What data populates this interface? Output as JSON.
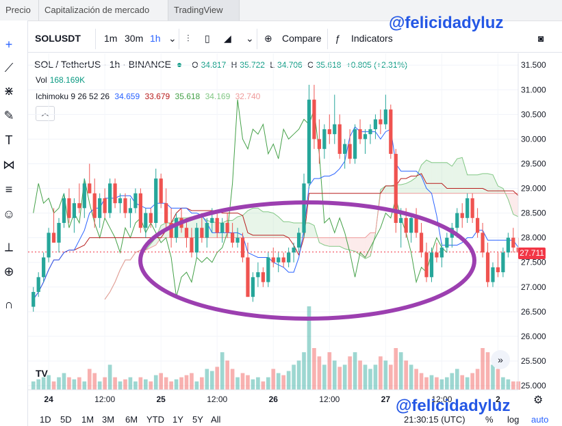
{
  "tabs": [
    {
      "label": "Precio"
    },
    {
      "label": "Capitalización de mercado"
    },
    {
      "label": "TradingView"
    }
  ],
  "watermark": "@felicidadyluz",
  "toolbar": {
    "symbol": "SOLUSDT",
    "intervals": [
      "1m",
      "30m",
      "1h"
    ],
    "compare_label": "Compare",
    "indicators_label": "Indicators"
  },
  "legend": {
    "title": "SOL / TetherUS · 1h · BINANCE",
    "o_label": "O",
    "o": "34.817",
    "h_label": "H",
    "h": "35.722",
    "l_label": "L",
    "l": "34.706",
    "c_label": "C",
    "c": "35.618",
    "change": "+0.805 (+2.31%)",
    "vol_label": "Vol",
    "vol": "168.169K",
    "ichimoku_label": "Ichimoku 9 26 52 26",
    "ichi_values": [
      "34.659",
      "33.679",
      "35.618",
      "34.169",
      "32.740"
    ]
  },
  "colors": {
    "up": "#26a69a",
    "down": "#ef5350",
    "conversion": "#2962ff",
    "base": "#b71c1c",
    "lagging": "#43a047",
    "span_a": "#81c784",
    "span_b": "#ef9a9a",
    "ellipse": "#9c3fb0"
  },
  "price_axis": [
    "31.500",
    "31.000",
    "30.500",
    "30.000",
    "29.500",
    "29.000",
    "28.500",
    "28.000",
    "27.500",
    "27.000",
    "26.500",
    "26.000",
    "25.500",
    "25.000"
  ],
  "current_price": "27.711",
  "time_axis": [
    "24",
    "12:00",
    "25",
    "12:00",
    "26",
    "12:00",
    "27",
    "12:00",
    "2"
  ],
  "bottom": {
    "ranges": [
      "1D",
      "5D",
      "1M",
      "3M",
      "6M",
      "YTD",
      "1Y",
      "5Y",
      "All"
    ],
    "clock": "21:30:15 (UTC)",
    "pct": "%",
    "log": "log",
    "auto": "auto"
  },
  "chart_data": {
    "type": "candlestick",
    "y_range": [
      25.0,
      31.6
    ],
    "candles": [
      [
        26.6,
        27.0,
        26.5,
        26.9
      ],
      [
        26.9,
        27.3,
        26.8,
        27.2
      ],
      [
        27.2,
        27.7,
        27.1,
        27.6
      ],
      [
        27.6,
        28.2,
        27.5,
        28.1
      ],
      [
        28.1,
        28.6,
        27.9,
        27.9
      ],
      [
        27.9,
        28.4,
        27.7,
        28.3
      ],
      [
        28.3,
        28.9,
        28.2,
        28.8
      ],
      [
        28.8,
        29.0,
        28.3,
        28.4
      ],
      [
        28.4,
        28.8,
        28.1,
        28.7
      ],
      [
        28.7,
        29.1,
        28.5,
        28.6
      ],
      [
        28.6,
        29.2,
        28.4,
        29.1
      ],
      [
        29.1,
        29.5,
        28.9,
        28.9
      ],
      [
        28.9,
        29.2,
        28.2,
        28.4
      ],
      [
        28.4,
        28.9,
        28.2,
        28.8
      ],
      [
        28.8,
        29.0,
        28.4,
        28.5
      ],
      [
        28.5,
        29.2,
        28.4,
        29.1
      ],
      [
        29.1,
        29.2,
        28.6,
        28.7
      ],
      [
        28.7,
        28.9,
        28.5,
        28.8
      ],
      [
        28.8,
        28.9,
        28.4,
        28.5
      ],
      [
        28.5,
        28.8,
        28.2,
        28.6
      ],
      [
        28.6,
        29.0,
        28.5,
        28.9
      ],
      [
        28.9,
        29.0,
        28.1,
        28.2
      ],
      [
        28.2,
        28.6,
        28.0,
        28.5
      ],
      [
        28.5,
        28.6,
        28.2,
        28.3
      ],
      [
        28.3,
        29.4,
        28.2,
        29.2
      ],
      [
        29.2,
        29.3,
        28.6,
        28.7
      ],
      [
        28.7,
        29.0,
        28.2,
        28.3
      ],
      [
        28.3,
        28.6,
        27.8,
        28.0
      ],
      [
        28.0,
        28.5,
        27.9,
        28.4
      ],
      [
        28.4,
        28.6,
        28.1,
        28.2
      ],
      [
        28.2,
        28.4,
        27.8,
        28.0
      ],
      [
        28.0,
        28.2,
        27.6,
        27.7
      ],
      [
        27.7,
        28.3,
        27.6,
        28.2
      ],
      [
        28.2,
        28.5,
        27.9,
        28.0
      ],
      [
        28.0,
        28.4,
        27.8,
        28.3
      ],
      [
        28.3,
        28.6,
        28.1,
        28.4
      ],
      [
        28.4,
        28.5,
        28.0,
        28.1
      ],
      [
        28.1,
        28.4,
        27.9,
        28.3
      ],
      [
        28.3,
        28.5,
        28.0,
        28.1
      ],
      [
        28.1,
        28.3,
        27.8,
        27.9
      ],
      [
        27.9,
        28.2,
        27.8,
        28.0
      ],
      [
        28.0,
        28.1,
        27.5,
        27.6
      ],
      [
        27.6,
        27.9,
        26.8,
        26.8
      ],
      [
        26.8,
        27.3,
        26.7,
        27.2
      ],
      [
        27.2,
        27.5,
        27.0,
        27.3
      ],
      [
        27.3,
        27.4,
        27.0,
        27.1
      ],
      [
        27.1,
        27.7,
        27.0,
        27.6
      ],
      [
        27.6,
        27.8,
        27.4,
        27.5
      ],
      [
        27.5,
        27.7,
        27.3,
        27.6
      ],
      [
        27.6,
        27.7,
        27.4,
        27.5
      ],
      [
        27.5,
        27.8,
        27.4,
        27.7
      ],
      [
        27.7,
        27.9,
        27.5,
        27.8
      ],
      [
        27.8,
        28.2,
        27.7,
        28.1
      ],
      [
        28.1,
        29.3,
        28.0,
        29.1
      ],
      [
        29.1,
        31.1,
        29.0,
        30.8
      ],
      [
        30.8,
        31.1,
        29.8,
        30.0
      ],
      [
        30.0,
        30.4,
        29.5,
        29.8
      ],
      [
        29.8,
        30.3,
        29.6,
        30.2
      ],
      [
        30.2,
        30.5,
        29.9,
        30.1
      ],
      [
        30.1,
        30.9,
        29.9,
        30.3
      ],
      [
        30.3,
        30.5,
        29.6,
        29.7
      ],
      [
        29.7,
        30.0,
        29.4,
        29.9
      ],
      [
        29.9,
        30.2,
        29.5,
        29.6
      ],
      [
        29.6,
        30.3,
        29.5,
        30.2
      ],
      [
        30.2,
        30.4,
        29.9,
        30.0
      ],
      [
        30.0,
        30.2,
        29.7,
        30.1
      ],
      [
        30.1,
        30.3,
        29.9,
        30.2
      ],
      [
        30.2,
        30.5,
        30.0,
        30.4
      ],
      [
        30.4,
        30.6,
        30.1,
        30.3
      ],
      [
        30.3,
        30.9,
        30.2,
        30.6
      ],
      [
        30.6,
        30.7,
        29.6,
        29.7
      ],
      [
        29.7,
        29.8,
        28.1,
        28.3
      ],
      [
        28.3,
        28.6,
        27.8,
        28.4
      ],
      [
        28.4,
        28.6,
        28.0,
        28.1
      ],
      [
        28.1,
        28.5,
        27.9,
        28.4
      ],
      [
        28.4,
        28.6,
        28.0,
        28.1
      ],
      [
        28.1,
        28.3,
        27.6,
        27.7
      ],
      [
        27.7,
        27.9,
        27.1,
        27.2
      ],
      [
        27.2,
        27.8,
        27.1,
        27.7
      ],
      [
        27.7,
        27.9,
        27.5,
        27.6
      ],
      [
        27.6,
        27.9,
        27.4,
        27.8
      ],
      [
        27.8,
        28.1,
        27.7,
        28.0
      ],
      [
        28.0,
        28.3,
        27.8,
        28.2
      ],
      [
        28.2,
        28.6,
        28.0,
        28.5
      ],
      [
        28.5,
        28.7,
        28.2,
        28.4
      ],
      [
        28.4,
        28.9,
        28.3,
        28.8
      ],
      [
        28.8,
        28.9,
        28.3,
        28.4
      ],
      [
        28.4,
        28.6,
        28.0,
        28.1
      ],
      [
        28.1,
        28.3,
        27.6,
        27.7
      ],
      [
        27.7,
        27.9,
        27.0,
        27.1
      ],
      [
        27.1,
        27.5,
        27.0,
        27.4
      ],
      [
        27.4,
        27.7,
        27.2,
        27.3
      ],
      [
        27.3,
        27.8,
        27.2,
        27.7
      ],
      [
        27.7,
        28.1,
        27.6,
        28.0
      ],
      [
        28.0,
        28.2,
        27.7,
        27.8
      ],
      [
        27.8,
        28.0,
        27.6,
        27.7
      ]
    ],
    "volumes": [
      0.2,
      0.25,
      0.3,
      0.35,
      0.2,
      0.3,
      0.4,
      0.3,
      0.25,
      0.3,
      0.2,
      0.5,
      0.4,
      0.2,
      0.3,
      0.6,
      0.3,
      0.2,
      0.25,
      0.3,
      0.2,
      0.3,
      0.25,
      0.2,
      0.35,
      0.4,
      0.3,
      0.2,
      0.25,
      0.3,
      0.35,
      0.4,
      0.2,
      0.3,
      0.5,
      0.45,
      0.55,
      0.9,
      0.7,
      0.5,
      0.3,
      0.4,
      0.35,
      0.25,
      0.3,
      0.2,
      0.3,
      0.5,
      0.4,
      0.35,
      0.45,
      0.6,
      0.7,
      0.9,
      2.0,
      1.0,
      0.8,
      0.6,
      0.9,
      0.7,
      0.55,
      0.6,
      0.8,
      0.9,
      0.7,
      0.6,
      0.5,
      0.6,
      0.8,
      0.7,
      0.6,
      1.0,
      0.9,
      0.7,
      0.6,
      0.5,
      0.4,
      0.3,
      0.35,
      0.3,
      0.25,
      0.3,
      0.4,
      0.5,
      0.35,
      0.3,
      0.4,
      0.5,
      1.0,
      0.9,
      0.6,
      0.5,
      0.3,
      0.25,
      0.2,
      0.2
    ]
  }
}
